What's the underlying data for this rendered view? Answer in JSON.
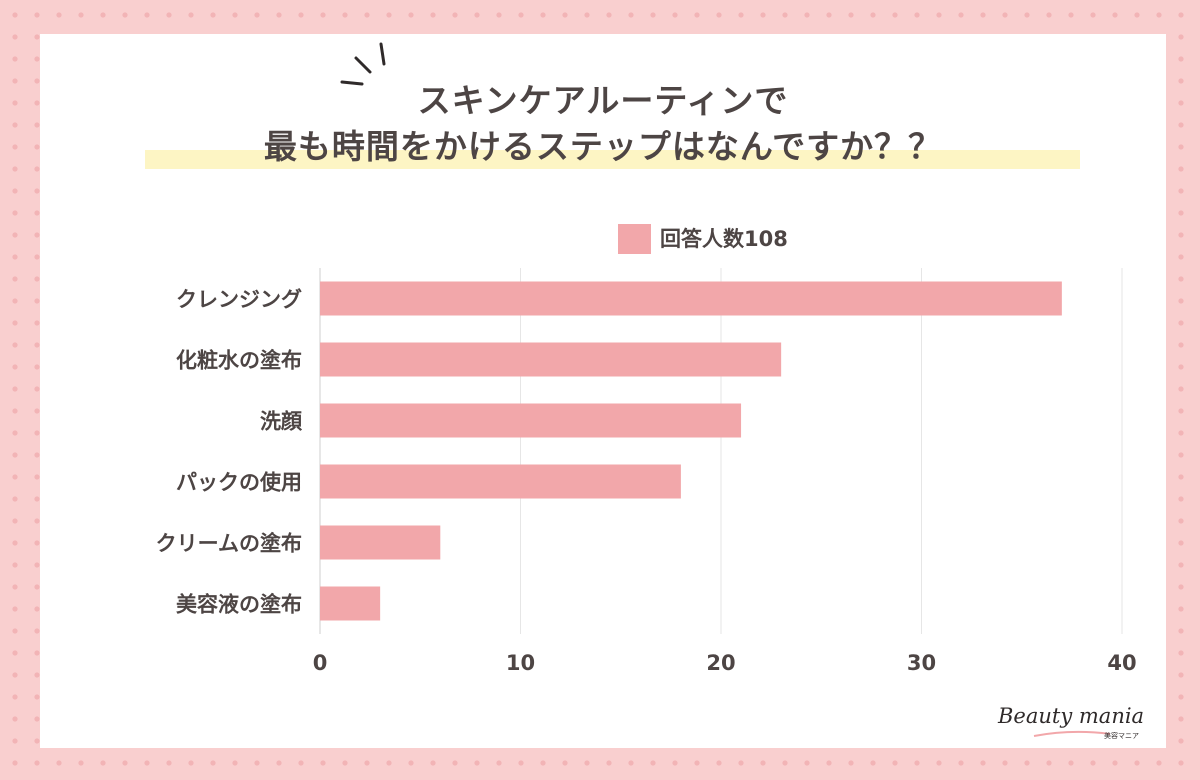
{
  "title": {
    "line1": "スキンケアルーティンで",
    "line2": "最も時間をかけるステップはなんですか？？"
  },
  "brand": {
    "name": "Beauty mania",
    "sub": "美容マニア"
  },
  "colors": {
    "bar": "#f2a7aa",
    "highlight": "#fdf5c4",
    "text": "#4d4544",
    "grid": "#e6e6e6"
  },
  "chart_data": {
    "type": "bar",
    "orientation": "horizontal",
    "categories": [
      "クレンジング",
      "化粧水の塗布",
      "洗顔",
      "パックの使用",
      "クリームの塗布",
      "美容液の塗布"
    ],
    "series": [
      {
        "name": "回答人数108",
        "values": [
          37,
          23,
          21,
          18,
          6,
          3
        ]
      }
    ],
    "xlim": [
      0,
      40
    ],
    "xticks": [
      "0",
      "10",
      "20",
      "30",
      "40"
    ],
    "grid": true,
    "legend": "top"
  }
}
